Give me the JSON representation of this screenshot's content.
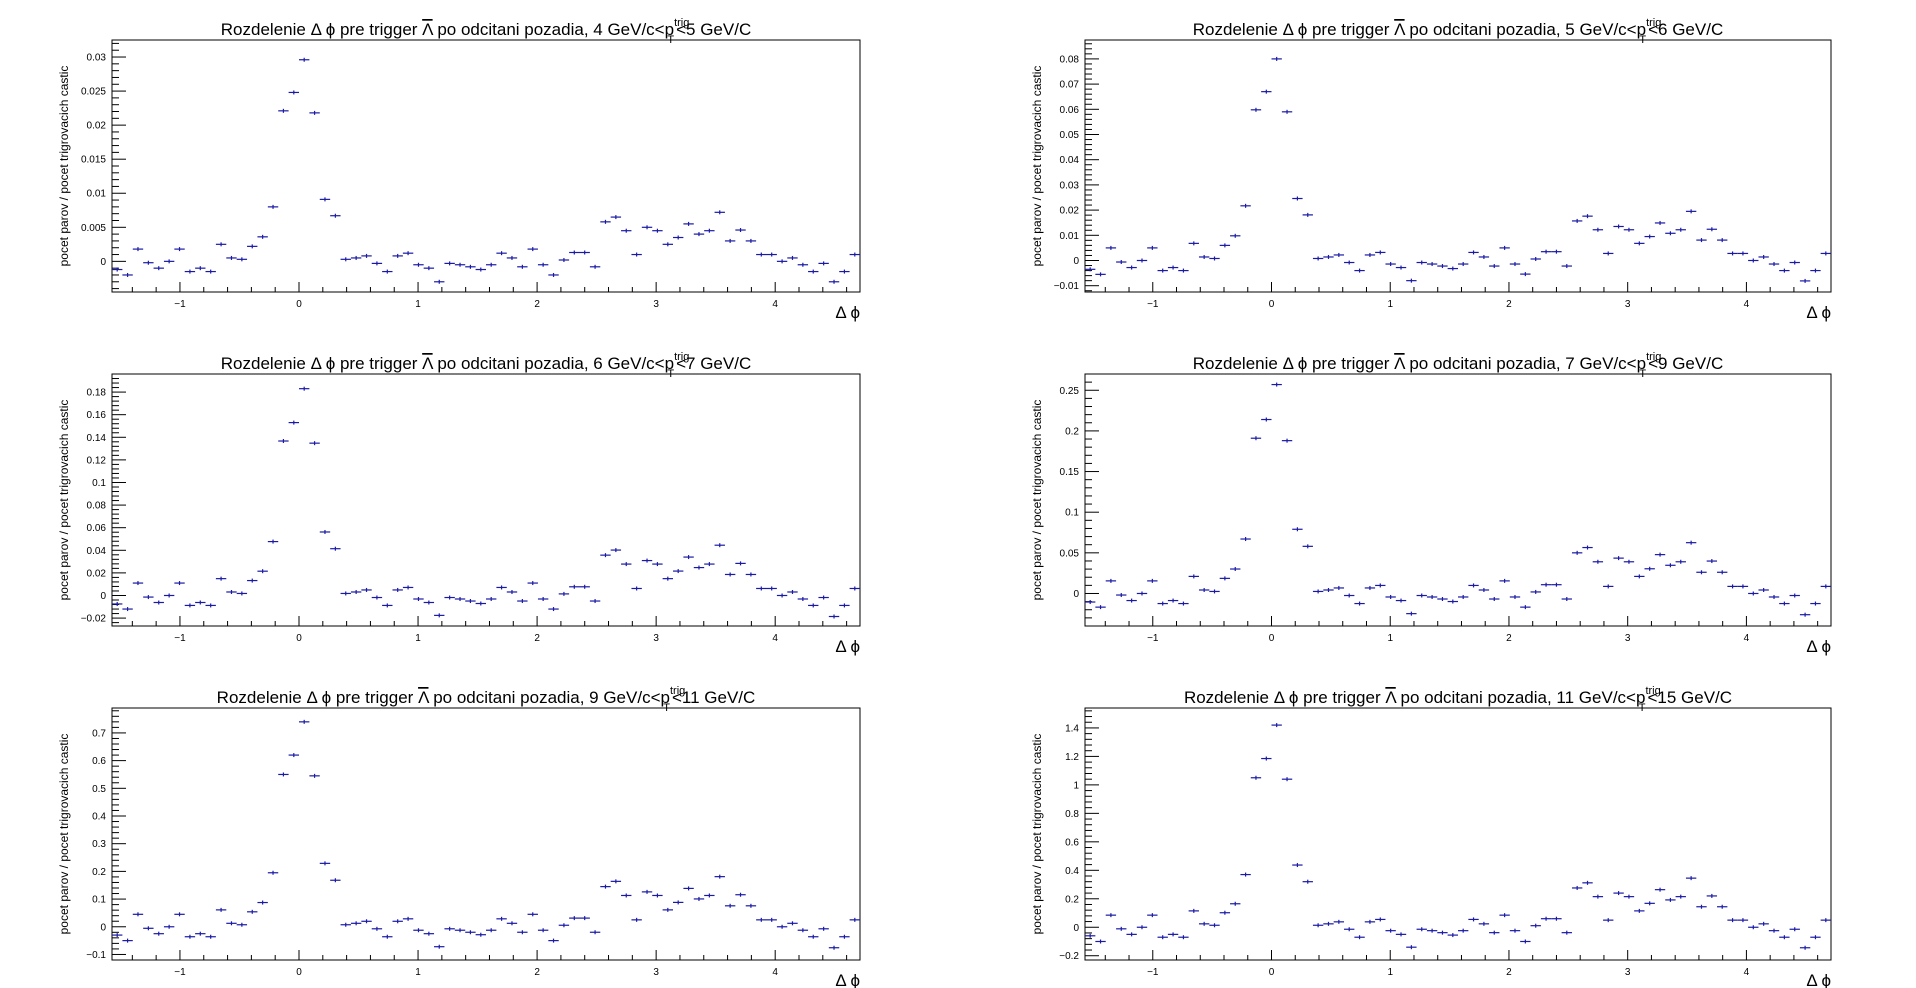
{
  "chart_data": [
    {
      "type": "scatter",
      "title_prefix": "Rozdelenie ",
      "title_mid1": " pre trigger ",
      "title_mid2": " po odcitani pozadia, 4 GeV/c<p",
      "title_sub": "T",
      "title_sup": "trig",
      "title_suffix": "<5 GeV/C",
      "xlabel": "Δ ϕ",
      "ylabel": "pocet parov / pocet trigrovacich castic",
      "xlim": [
        -1.5708,
        4.7124
      ],
      "ylim": [
        -0.0045,
        0.0325
      ],
      "x_ticks": [
        -1,
        0,
        1,
        2,
        3,
        4
      ],
      "x_tick_labels": [
        "−1",
        "0",
        "1",
        "2",
        "3",
        "4"
      ],
      "y_ticks": [
        0,
        0.005,
        0.01,
        0.015,
        0.02,
        0.025,
        0.03
      ],
      "y_tick_labels": [
        "0",
        "0.005",
        "0.01",
        "0.015",
        "0.02",
        "0.025",
        "0.03"
      ],
      "color": "#1a1aa6",
      "values": [
        -0.0012,
        -0.002,
        0.0018,
        -0.0002,
        -0.001,
        0.0,
        0.0018,
        -0.0015,
        -0.001,
        -0.0015,
        0.0025,
        0.0005,
        0.0003,
        0.0022,
        0.0036,
        0.008,
        0.0221,
        0.0248,
        0.0296,
        0.0218,
        0.0091,
        0.0067,
        0.0003,
        0.0005,
        0.0008,
        -0.0003,
        -0.0015,
        0.0008,
        0.0012,
        -0.0005,
        -0.001,
        -0.003,
        -0.0003,
        -0.0005,
        -0.0008,
        -0.0012,
        -0.0005,
        0.0012,
        0.0005,
        -0.0008,
        0.0018,
        -0.0005,
        -0.002,
        0.0002,
        0.0013,
        0.0013,
        -0.0008,
        0.0058,
        0.0065,
        0.0045,
        0.001,
        0.005,
        0.0045,
        0.0025,
        0.0035,
        0.0055,
        0.004,
        0.0045,
        0.0072,
        0.003,
        0.0046,
        0.003,
        0.001,
        0.001,
        0.0,
        0.0005,
        -0.0005,
        -0.0015,
        -0.0003,
        -0.003,
        -0.0015,
        0.001
      ]
    },
    {
      "type": "scatter",
      "title_prefix": "Rozdelenie ",
      "title_mid1": " pre trigger ",
      "title_mid2": " po odcitani pozadia, 5 GeV/c<p",
      "title_sub": "T",
      "title_sup": "trig",
      "title_suffix": "<6 GeV/C",
      "xlabel": "Δ ϕ",
      "ylabel": "pocet parov / pocet trigrovacich castic",
      "xlim": [
        -1.5708,
        4.7124
      ],
      "ylim": [
        -0.0125,
        0.0875
      ],
      "x_ticks": [
        -1,
        0,
        1,
        2,
        3,
        4
      ],
      "x_tick_labels": [
        "−1",
        "0",
        "1",
        "2",
        "3",
        "4"
      ],
      "y_ticks": [
        -0.01,
        0,
        0.01,
        0.02,
        0.03,
        0.04,
        0.05,
        0.06,
        0.07,
        0.08
      ],
      "y_tick_labels": [
        "−0.01",
        "0",
        "0.01",
        "0.02",
        "0.03",
        "0.04",
        "0.05",
        "0.06",
        "0.07",
        "0.08"
      ],
      "color": "#1a1aa6",
      "values": [
        -0.0035,
        -0.0055,
        0.005,
        -0.0006,
        -0.0028,
        0.0,
        0.005,
        -0.004,
        -0.0028,
        -0.004,
        0.0068,
        0.0014,
        0.0008,
        0.006,
        0.0098,
        0.0217,
        0.0598,
        0.067,
        0.08,
        0.059,
        0.0246,
        0.0181,
        0.0008,
        0.0014,
        0.0022,
        -0.0008,
        -0.004,
        0.0022,
        0.0032,
        -0.0014,
        -0.0028,
        -0.008,
        -0.0008,
        -0.0014,
        -0.0022,
        -0.0032,
        -0.0014,
        0.0032,
        0.0014,
        -0.0022,
        0.005,
        -0.0014,
        -0.0054,
        0.0006,
        0.0035,
        0.0035,
        -0.0022,
        0.0157,
        0.0176,
        0.0122,
        0.0028,
        0.0135,
        0.0122,
        0.0068,
        0.0095,
        0.0149,
        0.0108,
        0.0122,
        0.0195,
        0.0081,
        0.0124,
        0.0081,
        0.0028,
        0.0028,
        0.0,
        0.0014,
        -0.0014,
        -0.004,
        -0.0008,
        -0.0081,
        -0.004,
        0.0028
      ]
    },
    {
      "type": "scatter",
      "title_prefix": "Rozdelenie ",
      "title_mid1": " pre trigger ",
      "title_mid2": " po odcitani pozadia, 6 GeV/c<p",
      "title_sub": "T",
      "title_sup": "trig",
      "title_suffix": "<7 GeV/C",
      "xlabel": "Δ ϕ",
      "ylabel": "pocet parov / pocet trigrovacich castic",
      "xlim": [
        -1.5708,
        4.7124
      ],
      "ylim": [
        -0.027,
        0.196
      ],
      "x_ticks": [
        -1,
        0,
        1,
        2,
        3,
        4
      ],
      "x_tick_labels": [
        "−1",
        "0",
        "1",
        "2",
        "3",
        "4"
      ],
      "y_ticks": [
        -0.02,
        0,
        0.02,
        0.04,
        0.06,
        0.08,
        0.1,
        0.12,
        0.14,
        0.16,
        0.18
      ],
      "y_tick_labels": [
        "−0.02",
        "0",
        "0.02",
        "0.04",
        "0.06",
        "0.08",
        "0.1",
        "0.12",
        "0.14",
        "0.16",
        "0.18"
      ],
      "color": "#1a1aa6",
      "values": [
        -0.0075,
        -0.012,
        0.011,
        -0.0014,
        -0.0062,
        0.0,
        0.011,
        -0.0088,
        -0.0062,
        -0.0088,
        0.0149,
        0.0031,
        0.0018,
        0.0132,
        0.0215,
        0.0477,
        0.1367,
        0.153,
        0.183,
        0.1348,
        0.0562,
        0.0414,
        0.0018,
        0.0031,
        0.0049,
        -0.0018,
        -0.0088,
        0.0049,
        0.0071,
        -0.0031,
        -0.0062,
        -0.0176,
        -0.0018,
        -0.0031,
        -0.0049,
        -0.0071,
        -0.0031,
        0.0071,
        0.0031,
        -0.0049,
        0.011,
        -0.0031,
        -0.012,
        0.0014,
        0.0077,
        0.0077,
        -0.0049,
        0.0357,
        0.0402,
        0.0278,
        0.0062,
        0.0309,
        0.0278,
        0.0149,
        0.0216,
        0.034,
        0.0247,
        0.0278,
        0.0445,
        0.0186,
        0.0284,
        0.0186,
        0.0062,
        0.0062,
        0.0,
        0.0031,
        -0.0031,
        -0.0088,
        -0.0018,
        -0.0186,
        -0.0088,
        0.0062
      ]
    },
    {
      "type": "scatter",
      "title_prefix": "Rozdelenie ",
      "title_mid1": " pre trigger ",
      "title_mid2": " po odcitani pozadia, 7 GeV/c<p",
      "title_sub": "T",
      "title_sup": "trig",
      "title_suffix": "<9 GeV/C",
      "xlabel": "Δ ϕ",
      "ylabel": "pocet parov / pocet trigrovacich castic",
      "xlim": [
        -1.5708,
        4.7124
      ],
      "ylim": [
        -0.04,
        0.27
      ],
      "x_ticks": [
        -1,
        0,
        1,
        2,
        3,
        4
      ],
      "x_tick_labels": [
        "−1",
        "0",
        "1",
        "2",
        "3",
        "4"
      ],
      "y_ticks": [
        0,
        0.05,
        0.1,
        0.15,
        0.2,
        0.25
      ],
      "y_tick_labels": [
        "0",
        "0.05",
        "0.1",
        "0.15",
        "0.2",
        "0.25"
      ],
      "color": "#1a1aa6",
      "values": [
        -0.0105,
        -0.0168,
        0.0155,
        -0.0019,
        -0.0087,
        0.0,
        0.0155,
        -0.0124,
        -0.0087,
        -0.0124,
        0.021,
        0.0043,
        0.0025,
        0.0186,
        0.0301,
        0.067,
        0.191,
        0.214,
        0.257,
        0.188,
        0.079,
        0.058,
        0.0025,
        0.0043,
        0.0068,
        -0.0025,
        -0.0124,
        0.0068,
        0.0099,
        -0.0043,
        -0.0087,
        -0.0248,
        -0.0025,
        -0.0043,
        -0.0068,
        -0.0099,
        -0.0043,
        0.0099,
        0.0043,
        -0.0068,
        0.0155,
        -0.0043,
        -0.0168,
        0.0019,
        0.0108,
        0.0108,
        -0.0068,
        0.05,
        0.0565,
        0.039,
        0.0087,
        0.0435,
        0.039,
        0.021,
        0.0304,
        0.0478,
        0.0347,
        0.039,
        0.0625,
        0.0261,
        0.0399,
        0.0261,
        0.0087,
        0.0087,
        0.0,
        0.0043,
        -0.0043,
        -0.0124,
        -0.0025,
        -0.0261,
        -0.0124,
        0.0087
      ]
    },
    {
      "type": "scatter",
      "title_prefix": "Rozdelenie ",
      "title_mid1": " pre trigger ",
      "title_mid2": " po odcitani pozadia, 9 GeV/c<p",
      "title_sub": "T",
      "title_sup": "trig",
      "title_suffix": "<11 GeV/C",
      "xlabel": "Δ ϕ",
      "ylabel": "pocet parov / pocet trigrovacich castic",
      "xlim": [
        -1.5708,
        4.7124
      ],
      "ylim": [
        -0.12,
        0.79
      ],
      "x_ticks": [
        -1,
        0,
        1,
        2,
        3,
        4
      ],
      "x_tick_labels": [
        "−1",
        "0",
        "1",
        "2",
        "3",
        "4"
      ],
      "y_ticks": [
        -0.1,
        0,
        0.1,
        0.2,
        0.3,
        0.4,
        0.5,
        0.6,
        0.7
      ],
      "y_tick_labels": [
        "−0.1",
        "0",
        "0.1",
        "0.2",
        "0.3",
        "0.4",
        "0.5",
        "0.6",
        "0.7"
      ],
      "color": "#1a1aa6",
      "values": [
        -0.03,
        -0.05,
        0.045,
        -0.0055,
        -0.025,
        0.0,
        0.045,
        -0.036,
        -0.025,
        -0.036,
        0.061,
        0.0125,
        0.0073,
        0.054,
        0.0875,
        0.195,
        0.55,
        0.62,
        0.74,
        0.545,
        0.229,
        0.168,
        0.0073,
        0.0125,
        0.0198,
        -0.0073,
        -0.036,
        0.0198,
        0.0287,
        -0.0125,
        -0.025,
        -0.072,
        -0.0073,
        -0.0125,
        -0.0198,
        -0.0287,
        -0.0125,
        0.0287,
        0.0125,
        -0.0198,
        0.045,
        -0.0125,
        -0.05,
        0.0055,
        0.0313,
        0.0313,
        -0.0198,
        0.145,
        0.164,
        0.113,
        0.025,
        0.126,
        0.113,
        0.061,
        0.088,
        0.1385,
        0.1005,
        0.113,
        0.181,
        0.0757,
        0.1157,
        0.0757,
        0.025,
        0.025,
        0.0,
        0.0125,
        -0.0125,
        -0.036,
        -0.0073,
        -0.0757,
        -0.036,
        0.025
      ]
    },
    {
      "type": "scatter",
      "title_prefix": "Rozdelenie ",
      "title_mid1": " pre trigger ",
      "title_mid2": " po odcitani pozadia, 11 GeV/c<p",
      "title_sub": "T",
      "title_sup": "trig",
      "title_suffix": "<15 GeV/C",
      "xlabel": "Δ ϕ",
      "ylabel": "pocet parov / pocet trigrovacich castic",
      "xlim": [
        -1.5708,
        4.7124
      ],
      "ylim": [
        -0.23,
        1.54
      ],
      "x_ticks": [
        -1,
        0,
        1,
        2,
        3,
        4
      ],
      "x_tick_labels": [
        "−1",
        "0",
        "1",
        "2",
        "3",
        "4"
      ],
      "y_ticks": [
        -0.2,
        0,
        0.2,
        0.4,
        0.6,
        0.8,
        1,
        1.2,
        1.4
      ],
      "y_tick_labels": [
        "−0.2",
        "0",
        "0.2",
        "0.4",
        "0.6",
        "0.8",
        "1",
        "1.2",
        "1.4"
      ],
      "color": "#1a1aa6",
      "values": [
        -0.06,
        -0.1,
        0.085,
        -0.011,
        -0.05,
        0.0,
        0.085,
        -0.07,
        -0.05,
        -0.07,
        0.115,
        0.024,
        0.014,
        0.102,
        0.165,
        0.37,
        1.05,
        1.185,
        1.42,
        1.04,
        0.437,
        0.32,
        0.014,
        0.024,
        0.038,
        -0.014,
        -0.07,
        0.038,
        0.055,
        -0.024,
        -0.05,
        -0.14,
        -0.014,
        -0.024,
        -0.038,
        -0.055,
        -0.024,
        0.055,
        0.024,
        -0.038,
        0.085,
        -0.024,
        -0.1,
        0.011,
        0.06,
        0.06,
        -0.038,
        0.276,
        0.312,
        0.215,
        0.05,
        0.24,
        0.215,
        0.115,
        0.168,
        0.264,
        0.192,
        0.215,
        0.345,
        0.144,
        0.22,
        0.144,
        0.05,
        0.05,
        0.0,
        0.024,
        -0.024,
        -0.07,
        -0.014,
        -0.144,
        -0.07,
        0.05
      ]
    }
  ]
}
